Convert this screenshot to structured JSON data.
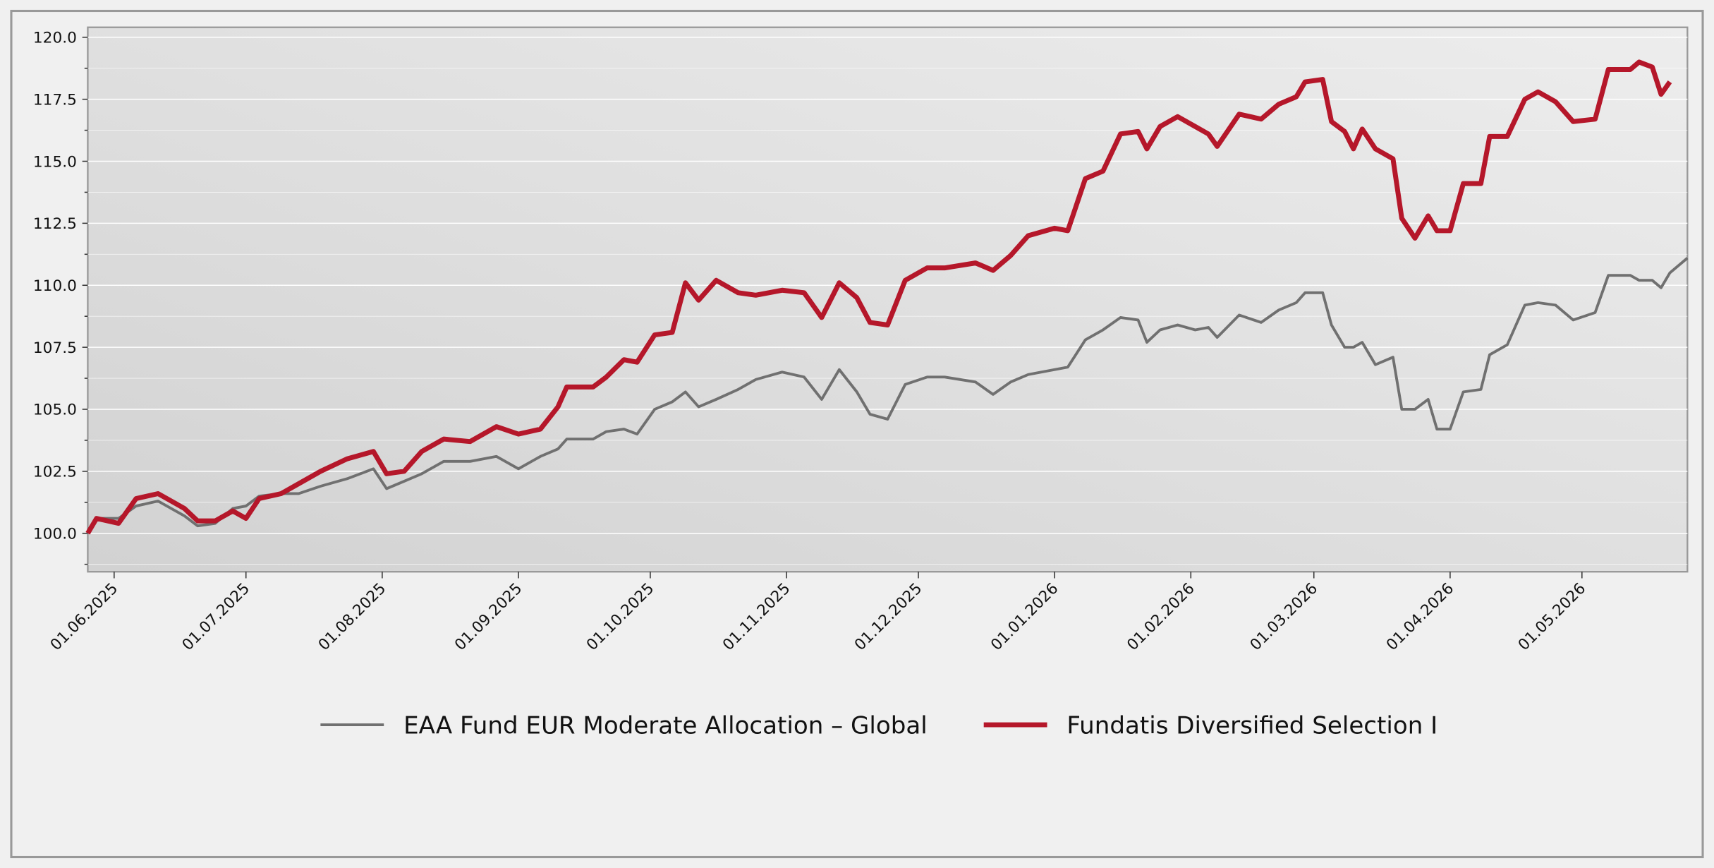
{
  "chart_data": {
    "type": "line",
    "x": [
      "2025-05-26",
      "2025-05-28",
      "2025-06-02",
      "2025-06-06",
      "2025-06-11",
      "2025-06-17",
      "2025-06-20",
      "2025-06-24",
      "2025-06-28",
      "2025-07-01",
      "2025-07-04",
      "2025-07-09",
      "2025-07-13",
      "2025-07-18",
      "2025-07-24",
      "2025-07-30",
      "2025-08-02",
      "2025-08-06",
      "2025-08-10",
      "2025-08-15",
      "2025-08-21",
      "2025-08-27",
      "2025-09-01",
      "2025-09-06",
      "2025-09-10",
      "2025-09-12",
      "2025-09-18",
      "2025-09-21",
      "2025-09-25",
      "2025-09-28",
      "2025-10-02",
      "2025-10-06",
      "2025-10-09",
      "2025-10-12",
      "2025-10-16",
      "2025-10-21",
      "2025-10-25",
      "2025-10-31",
      "2025-11-05",
      "2025-11-09",
      "2025-11-13",
      "2025-11-17",
      "2025-11-20",
      "2025-11-24",
      "2025-11-28",
      "2025-12-03",
      "2025-12-07",
      "2025-12-14",
      "2025-12-18",
      "2025-12-22",
      "2025-12-26",
      "2026-01-01",
      "2026-01-04",
      "2026-01-08",
      "2026-01-12",
      "2026-01-16",
      "2026-01-20",
      "2026-01-22",
      "2026-01-25",
      "2026-01-29",
      "2026-02-02",
      "2026-02-05",
      "2026-02-07",
      "2026-02-12",
      "2026-02-17",
      "2026-02-21",
      "2026-02-25",
      "2026-02-27",
      "2026-03-03",
      "2026-03-05",
      "2026-03-08",
      "2026-03-10",
      "2026-03-12",
      "2026-03-15",
      "2026-03-19",
      "2026-03-21",
      "2026-03-24",
      "2026-03-27",
      "2026-03-29",
      "2026-04-01",
      "2026-04-04",
      "2026-04-08",
      "2026-04-10",
      "2026-04-14",
      "2026-04-18",
      "2026-04-21",
      "2026-04-25",
      "2026-04-29",
      "2026-05-04",
      "2026-05-07",
      "2026-05-12",
      "2026-05-14",
      "2026-05-17",
      "2026-05-19",
      "2026-05-21",
      "2026-05-25"
    ],
    "series": [
      {
        "name": "EAA Fund EUR Moderate Allocation – Global",
        "color": "#707070",
        "values": [
          100.0,
          100.6,
          100.6,
          101.1,
          101.3,
          100.7,
          100.3,
          100.4,
          101.0,
          101.1,
          101.5,
          101.6,
          101.6,
          101.9,
          102.2,
          102.6,
          101.8,
          102.1,
          102.4,
          102.9,
          102.9,
          103.1,
          102.6,
          103.1,
          103.4,
          103.8,
          103.8,
          104.1,
          104.2,
          104.0,
          105.0,
          105.3,
          105.7,
          105.1,
          105.4,
          105.8,
          106.2,
          106.5,
          106.3,
          105.4,
          106.6,
          105.7,
          104.8,
          104.6,
          106.0,
          106.3,
          106.3,
          106.1,
          105.6,
          106.1,
          106.4,
          106.6,
          106.7,
          107.8,
          108.2,
          108.7,
          108.6,
          107.7,
          108.2,
          108.4,
          108.2,
          108.3,
          107.9,
          108.8,
          108.5,
          109.0,
          109.3,
          109.7,
          109.7,
          108.4,
          107.5,
          107.5,
          107.7,
          106.8,
          107.1,
          105.0,
          105.0,
          105.4,
          104.2,
          104.2,
          105.7,
          105.8,
          107.2,
          107.6,
          109.2,
          109.3,
          109.2,
          108.6,
          108.9,
          110.4,
          110.4,
          110.2,
          110.2,
          109.9,
          110.5,
          111.1
        ]
      },
      {
        "name": "Fundatis Diversified Selection I",
        "color": "#b5172a",
        "values": [
          100.0,
          100.6,
          100.4,
          101.4,
          101.6,
          101.0,
          100.5,
          100.5,
          100.9,
          100.6,
          101.4,
          101.6,
          102.0,
          102.5,
          103.0,
          103.3,
          102.4,
          102.5,
          103.3,
          103.8,
          103.7,
          104.3,
          104.0,
          104.2,
          105.1,
          105.9,
          105.9,
          106.3,
          107.0,
          106.9,
          108.0,
          108.1,
          110.1,
          109.4,
          110.2,
          109.7,
          109.6,
          109.8,
          109.7,
          108.7,
          110.1,
          109.5,
          108.5,
          108.4,
          110.2,
          110.7,
          110.7,
          110.9,
          110.6,
          111.2,
          112.0,
          112.3,
          112.2,
          114.3,
          114.6,
          116.1,
          116.2,
          115.5,
          116.4,
          116.8,
          116.4,
          116.1,
          115.6,
          116.9,
          116.7,
          117.3,
          117.6,
          118.2,
          118.3,
          116.6,
          116.2,
          115.5,
          116.3,
          115.5,
          115.1,
          112.7,
          111.9,
          112.8,
          112.2,
          112.2,
          114.1,
          114.1,
          116.0,
          116.0,
          117.5,
          117.8,
          117.4,
          116.6,
          116.7,
          118.7,
          118.7,
          119.0,
          118.8,
          117.7,
          118.2,
          null
        ]
      }
    ],
    "xlim": [
      "2025-05-26",
      "2026-05-25"
    ],
    "xticks": [
      {
        "value": "2025-06-01",
        "label": "01.06.2025"
      },
      {
        "value": "2025-07-01",
        "label": "01.07.2025"
      },
      {
        "value": "2025-08-01",
        "label": "01.08.2025"
      },
      {
        "value": "2025-09-01",
        "label": "01.09.2025"
      },
      {
        "value": "2025-10-01",
        "label": "01.10.2025"
      },
      {
        "value": "2025-11-01",
        "label": "01.11.2025"
      },
      {
        "value": "2025-12-01",
        "label": "01.12.2025"
      },
      {
        "value": "2026-01-01",
        "label": "01.01.2026"
      },
      {
        "value": "2026-02-01",
        "label": "01.02.2026"
      },
      {
        "value": "2026-03-01",
        "label": "01.03.2026"
      },
      {
        "value": "2026-04-01",
        "label": "01.04.2026"
      },
      {
        "value": "2026-05-01",
        "label": "01.05.2026"
      }
    ],
    "ylim": [
      98.45,
      120.4
    ],
    "yticks": [
      {
        "value": 100,
        "label": "100.0"
      },
      {
        "value": 102.5,
        "label": "102.5"
      },
      {
        "value": 105,
        "label": "105.0"
      },
      {
        "value": 107.5,
        "label": "107.5"
      },
      {
        "value": 110,
        "label": "110.0"
      },
      {
        "value": 112.5,
        "label": "112.5"
      },
      {
        "value": 115,
        "label": "115.0"
      },
      {
        "value": 117.5,
        "label": "117.5"
      },
      {
        "value": 120,
        "label": "120.0"
      }
    ],
    "yminorticks": [
      98.75,
      101.25,
      103.75,
      106.25,
      108.75,
      111.25,
      113.75,
      116.25,
      118.75
    ],
    "grid": true,
    "legend": "bottom"
  }
}
